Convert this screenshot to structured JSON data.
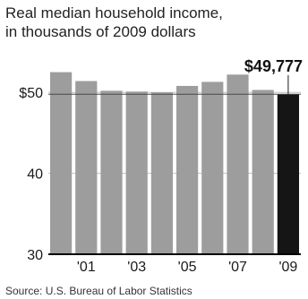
{
  "chart_data": {
    "type": "bar",
    "title": [
      "Real median household income,",
      "in thousands of 2009 dollars"
    ],
    "categories": [
      "2000",
      "2001",
      "2002",
      "2003",
      "2004",
      "2005",
      "2006",
      "2007",
      "2008",
      "2009"
    ],
    "tick_labels": [
      "",
      "'01",
      "",
      "'03",
      "",
      "'05",
      "",
      "'07",
      "",
      "'09"
    ],
    "values": [
      52.5,
      51.4,
      50.2,
      50.1,
      50.0,
      50.8,
      51.3,
      52.2,
      50.3,
      49.777
    ],
    "highlight_index": 9,
    "highlight_label": "$49,777",
    "ylim": [
      30,
      55
    ],
    "yticks": [
      {
        "value": 50,
        "label": "$50"
      },
      {
        "value": 40,
        "label": "40"
      },
      {
        "value": 30,
        "label": "30"
      }
    ],
    "reference_line_value": 49.777,
    "grid": true,
    "xlabel": "",
    "ylabel": "",
    "colors": {
      "bar": "#9d9d9d",
      "highlight": "#151515",
      "grid": "#bfbfbf",
      "axis": "#000000"
    }
  },
  "source": "Source: U.S. Bureau of Labor Statistics"
}
